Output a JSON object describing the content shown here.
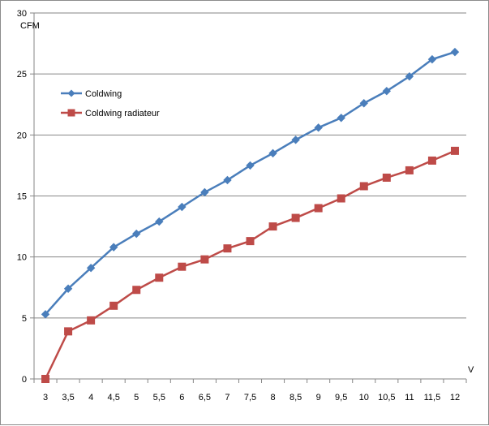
{
  "chart_data": {
    "type": "line",
    "ylabel": "CFM",
    "xlabel": "V",
    "categories": [
      "3",
      "3,5",
      "4",
      "4,5",
      "5",
      "5,5",
      "6",
      "6,5",
      "7",
      "7,5",
      "8",
      "8,5",
      "9",
      "9,5",
      "10",
      "10,5",
      "11",
      "11,5",
      "12"
    ],
    "ylim": [
      0,
      30
    ],
    "yticks": [
      0,
      5,
      10,
      15,
      20,
      25,
      30
    ],
    "grid": true,
    "legend_position": "top-left",
    "series": [
      {
        "name": "Coldwing",
        "color": "#4a7ebb",
        "marker": "diamond",
        "values": [
          5.3,
          7.4,
          9.1,
          10.8,
          11.9,
          12.9,
          14.1,
          15.3,
          16.3,
          17.5,
          18.5,
          19.6,
          20.6,
          21.4,
          22.6,
          23.6,
          24.8,
          26.2,
          26.8
        ]
      },
      {
        "name": "Coldwing radiateur",
        "color": "#be4b48",
        "marker": "square",
        "values": [
          0,
          3.9,
          4.8,
          6.0,
          7.3,
          8.3,
          9.2,
          9.8,
          10.7,
          11.3,
          12.5,
          13.2,
          14.0,
          14.8,
          15.8,
          16.5,
          17.1,
          17.9,
          18.7
        ]
      }
    ]
  }
}
